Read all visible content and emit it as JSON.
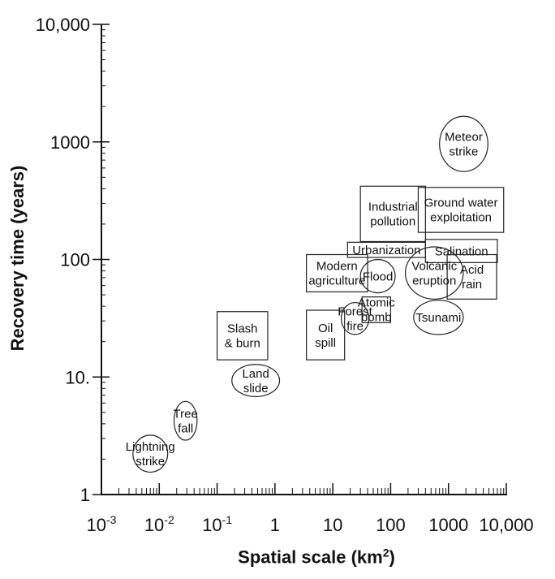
{
  "chart_data": {
    "type": "scatter",
    "title": "",
    "xlabel": "Spatial scale (km",
    "xlabel_sup": "2",
    "xlabel_suffix": ")",
    "ylabel": "Recovery time (years)",
    "x_scale": "log",
    "y_scale": "log",
    "xlim": [
      0.001,
      10000
    ],
    "ylim": [
      1,
      10000
    ],
    "grid": false,
    "x_ticks": [
      {
        "value": 0.001,
        "base": "10",
        "exp": "-3"
      },
      {
        "value": 0.01,
        "base": "10",
        "exp": "-2"
      },
      {
        "value": 0.1,
        "base": "10",
        "exp": "-1"
      },
      {
        "value": 1,
        "label": "1"
      },
      {
        "value": 10,
        "label": "10"
      },
      {
        "value": 100,
        "label": "100"
      },
      {
        "value": 1000,
        "label": "1000"
      },
      {
        "value": 10000,
        "label": "10,000"
      }
    ],
    "y_ticks": [
      {
        "value": 1,
        "label": "1"
      },
      {
        "value": 10,
        "label": "10."
      },
      {
        "value": 100,
        "label": "100"
      },
      {
        "value": 1000,
        "label": "1000"
      },
      {
        "value": 10000,
        "label": "10,000"
      }
    ],
    "events": [
      {
        "lines": [
          "Lightning",
          "strike"
        ],
        "shape": "ellipse",
        "x": [
          0.0035,
          0.014
        ],
        "y": [
          1.55,
          3.2
        ]
      },
      {
        "lines": [
          "Tree",
          "fall"
        ],
        "shape": "ellipse",
        "x": [
          0.018,
          0.045
        ],
        "y": [
          2.9,
          6.2
        ]
      },
      {
        "lines": [
          "Slash",
          "& burn"
        ],
        "shape": "rect",
        "x": [
          0.1,
          0.75
        ],
        "y": [
          14,
          36
        ]
      },
      {
        "lines": [
          "Land",
          "slide"
        ],
        "shape": "ellipse",
        "x": [
          0.18,
          1.2
        ],
        "y": [
          6.8,
          12.8
        ]
      },
      {
        "lines": [
          "Oil",
          "spill"
        ],
        "shape": "rect",
        "x": [
          3.5,
          16
        ],
        "y": [
          14,
          37
        ]
      },
      {
        "lines": [
          "Forest",
          "fire"
        ],
        "shape": "ellipse",
        "x": [
          14,
          42
        ],
        "y": [
          23,
          43
        ]
      },
      {
        "lines": [
          "Atomic",
          "bomb"
        ],
        "shape": "rect",
        "x": [
          32,
          100
        ],
        "y": [
          29,
          48
        ]
      },
      {
        "lines": [
          "Modern",
          "agriculture"
        ],
        "shape": "rect",
        "x": [
          3.5,
          40
        ],
        "y": [
          53,
          110
        ]
      },
      {
        "lines": [
          "Flood"
        ],
        "shape": "ellipse",
        "x": [
          30,
          120
        ],
        "y": [
          52,
          100
        ]
      },
      {
        "lines": [
          "Urbanization"
        ],
        "shape": "rect",
        "x": [
          18,
          400
        ],
        "y": [
          104,
          140
        ]
      },
      {
        "lines": [
          "Industrial",
          "pollution"
        ],
        "shape": "rect",
        "x": [
          30,
          400
        ],
        "y": [
          142,
          420
        ]
      },
      {
        "lines": [
          "Ground water",
          "exploitation"
        ],
        "shape": "rect",
        "x": [
          300,
          9000
        ],
        "y": [
          170,
          410
        ]
      },
      {
        "lines": [
          "Salination"
        ],
        "shape": "rect",
        "x": [
          400,
          7000
        ],
        "y": [
          94,
          148
        ]
      },
      {
        "lines": [
          "Volcanic",
          "eruption"
        ],
        "shape": "ellipse",
        "x": [
          180,
          1800
        ],
        "y": [
          46,
          128
        ]
      },
      {
        "lines": [
          "Acid",
          "rain"
        ],
        "shape": "rect",
        "x": [
          950,
          6800
        ],
        "y": [
          46,
          110
        ]
      },
      {
        "lines": [
          "Tsunami"
        ],
        "shape": "ellipse",
        "x": [
          250,
          1800
        ],
        "y": [
          23,
          45
        ]
      },
      {
        "lines": [
          "Meteor",
          "strike"
        ],
        "shape": "ellipse",
        "x": [
          700,
          4800
        ],
        "y": [
          560,
          1650
        ]
      }
    ]
  }
}
